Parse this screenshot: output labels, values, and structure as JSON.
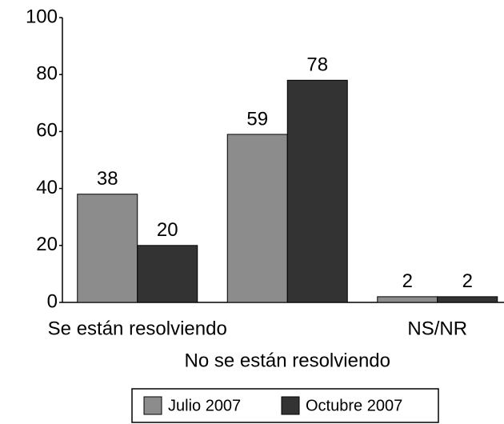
{
  "chart_data": {
    "type": "bar",
    "categories": [
      "Se están resolviendo",
      "No se están resolviendo",
      "NS/NR"
    ],
    "series": [
      {
        "name": "Julio 2007",
        "color": "#8c8c8c",
        "values": [
          38,
          59,
          2
        ]
      },
      {
        "name": "Octubre 2007",
        "color": "#333333",
        "values": [
          20,
          78,
          2
        ]
      }
    ],
    "ylim": [
      0,
      100
    ],
    "yticks": [
      0,
      20,
      40,
      60,
      80,
      100
    ],
    "legend": "bottom"
  }
}
